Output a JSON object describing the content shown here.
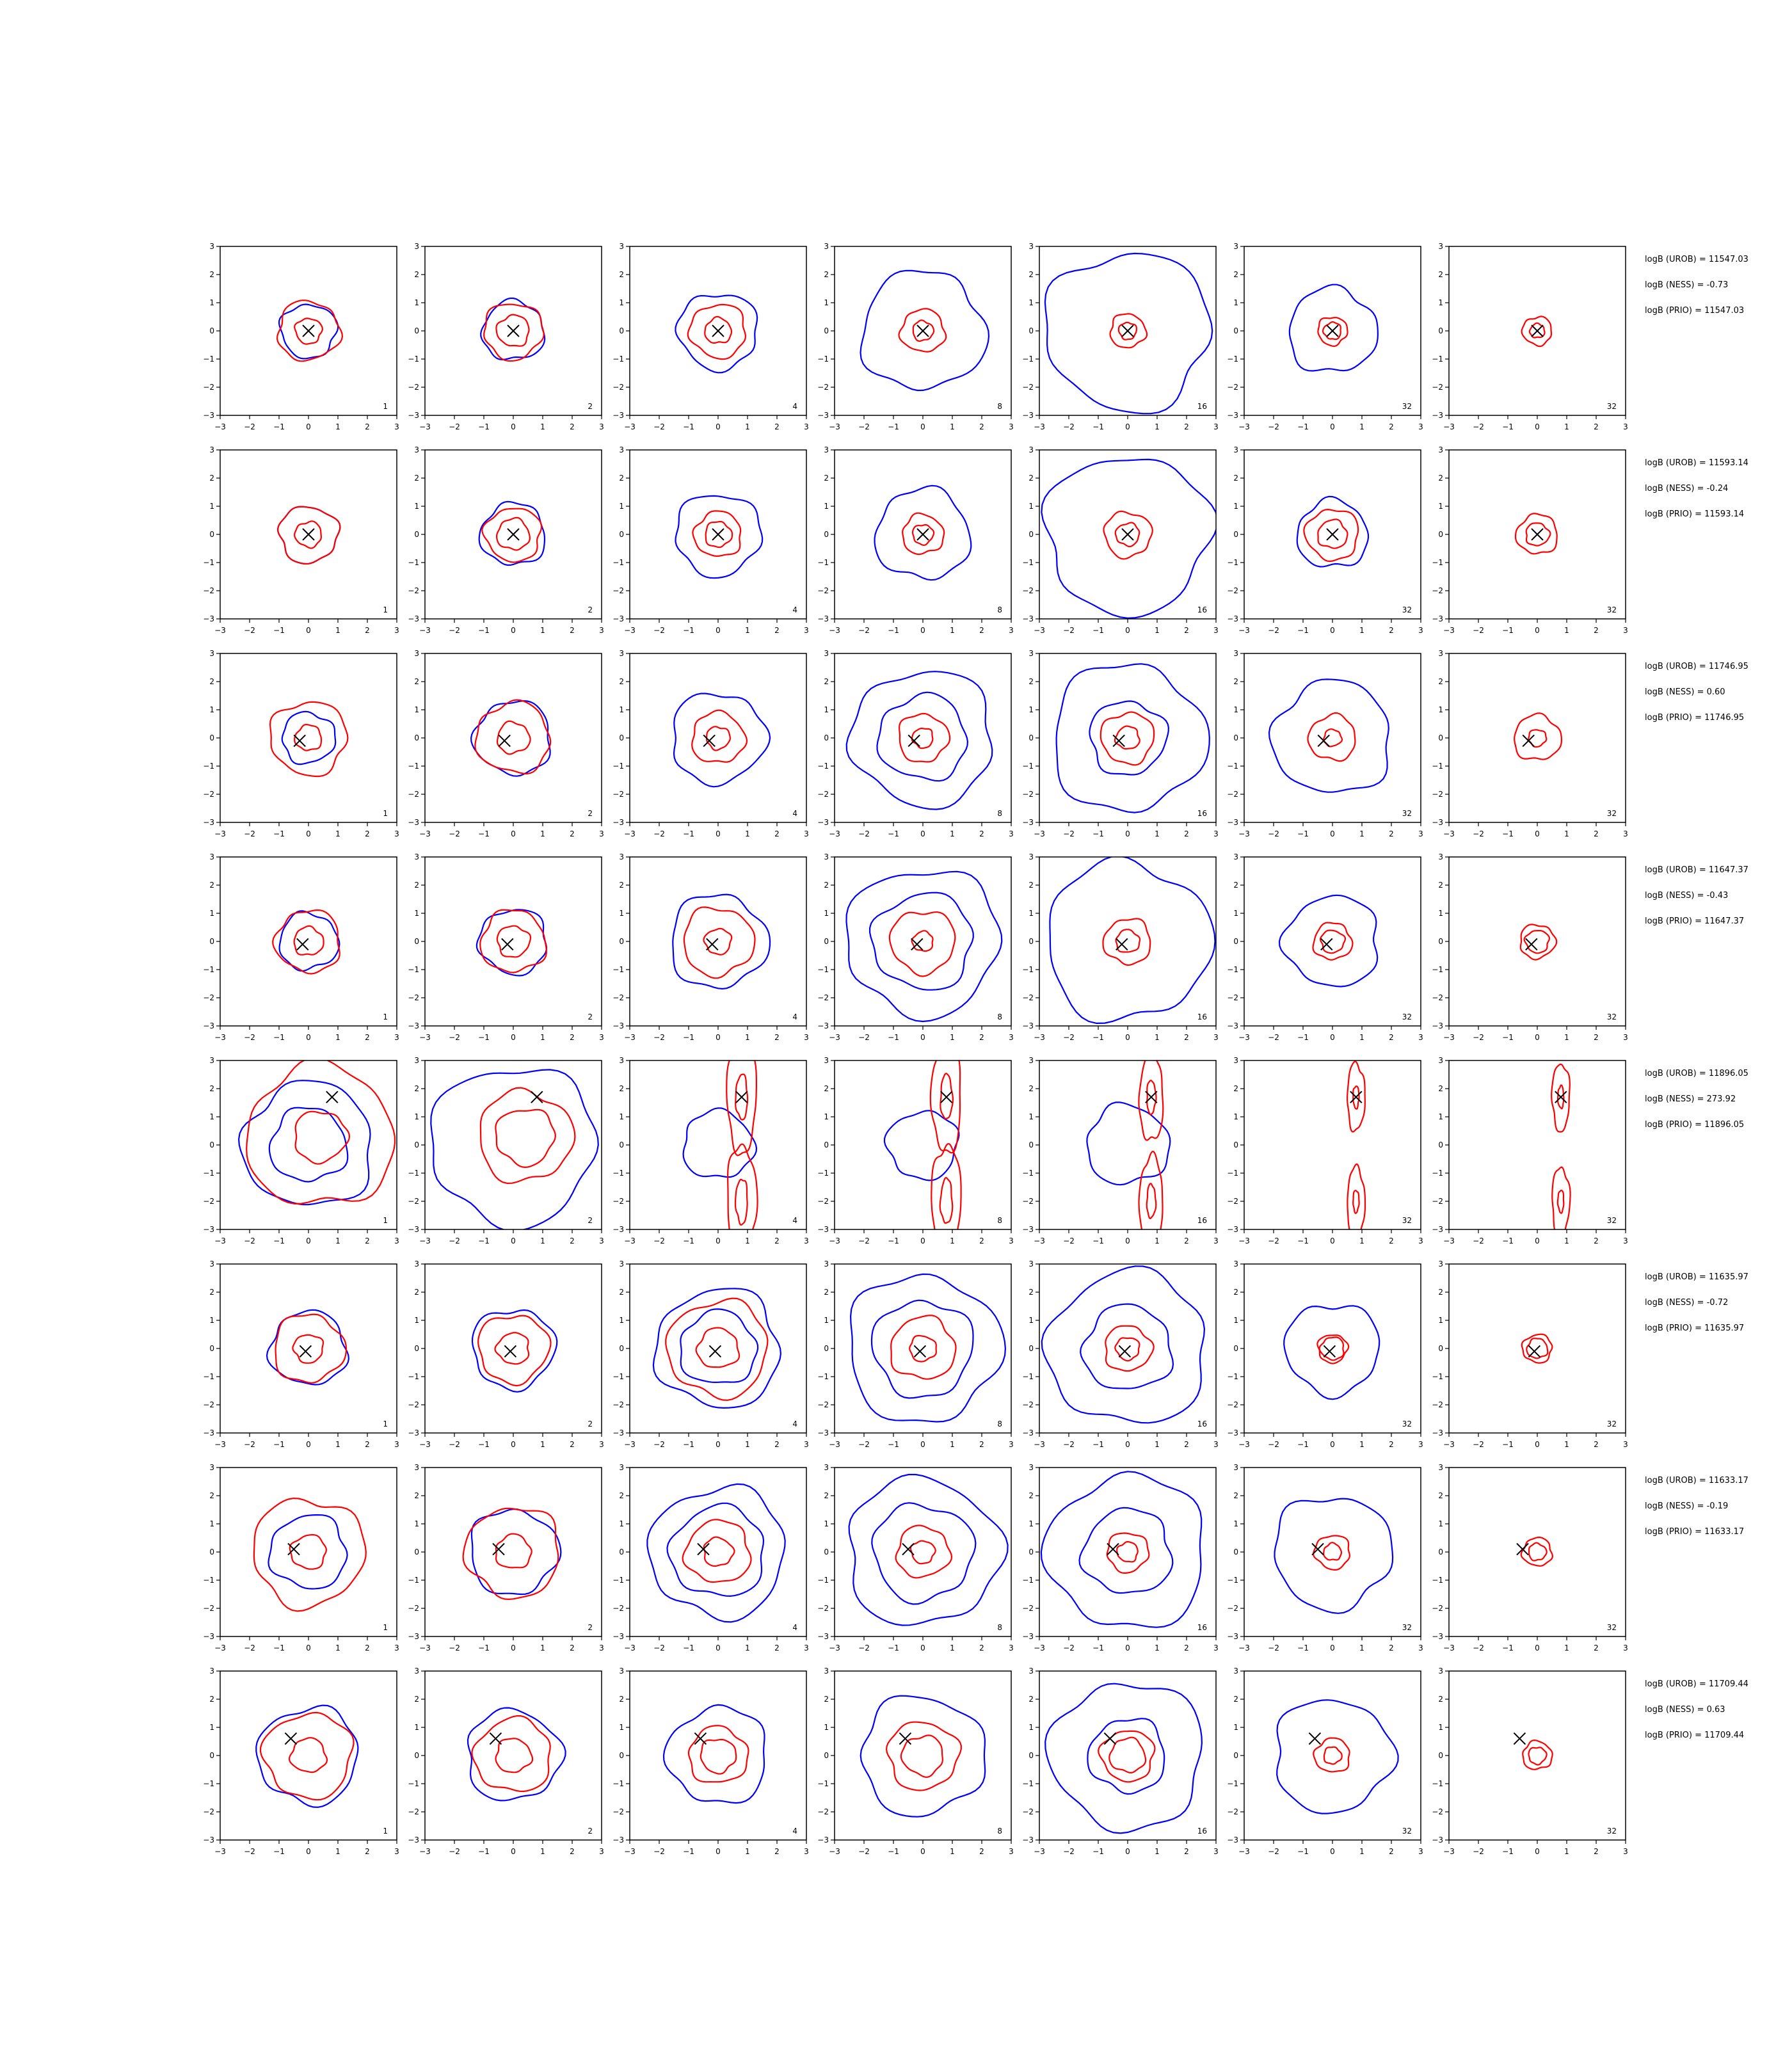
{
  "figure": {
    "type": "contour-grid",
    "rows": 8,
    "panel_x_range": [
      -3,
      3
    ],
    "panel_y_range": [
      -3,
      3
    ],
    "x_ticks": [
      "−3",
      "−2",
      "−1",
      "0",
      "1",
      "2",
      "3"
    ],
    "y_ticks": [
      "3",
      "2",
      "1",
      "0",
      "−1",
      "−2",
      "−3"
    ],
    "column_labels": [
      "1",
      "2",
      "4",
      "8",
      "16",
      "32",
      "32"
    ],
    "colors": {
      "red_contours": "#ff0000",
      "blue_contours": "#0000ff",
      "marker": "#000000"
    }
  },
  "chart_data": {
    "type": "contour",
    "title": "",
    "xlim": [
      -3,
      3
    ],
    "ylim": [
      -3,
      3
    ],
    "rows": [
      {
        "marker": [
          0.0,
          0.0
        ],
        "stats": [
          "logB (UROB) = 11547.03",
          "logB (NESS) = -0.73",
          "logB (PRIO) = 11547.03"
        ],
        "red_rx": [
          [
            0.45,
            1.05
          ],
          [
            0.55,
            1.0
          ],
          [
            0.45,
            0.95
          ],
          [
            0.35,
            0.75
          ],
          [
            0.3,
            0.6
          ],
          [
            0.3,
            0.5
          ],
          [
            0.25,
            0.5
          ]
        ],
        "blue_rx": [
          [
            0.95
          ],
          [
            1.05
          ],
          [
            1.35
          ],
          [
            2.1
          ],
          [
            2.8
          ],
          [
            1.5
          ],
          []
        ]
      },
      {
        "marker": [
          0.0,
          0.0
        ],
        "stats": [
          "logB (UROB) = 11593.14",
          "logB (NESS) = -0.24",
          "logB (PRIO) = 11593.14"
        ],
        "red_rx": [
          [
            0.45,
            1.0
          ],
          [
            0.55,
            0.95
          ],
          [
            0.45,
            0.8
          ],
          [
            0.35,
            0.7
          ],
          [
            0.4,
            0.8
          ],
          [
            0.5,
            0.9
          ],
          [
            0.4,
            0.7
          ]
        ],
        "blue_rx": [
          [
            1.0
          ],
          [
            1.1
          ],
          [
            1.45
          ],
          [
            1.6
          ],
          [
            2.8
          ],
          [
            1.2
          ],
          []
        ]
      },
      {
        "marker": [
          -0.3,
          -0.1
        ],
        "stats": [
          "logB (UROB) = 11746.95",
          "logB (NESS) = 0.60",
          "logB (PRIO) = 11746.95"
        ],
        "red_rx": [
          [
            0.45,
            1.3
          ],
          [
            0.55,
            1.25
          ],
          [
            0.4,
            0.9
          ],
          [
            0.35,
            0.85
          ],
          [
            0.4,
            0.9
          ],
          [
            0.3,
            0.8
          ],
          [
            0.3,
            0.8
          ]
        ],
        "blue_rx": [
          [
            0.9
          ],
          [
            1.3
          ],
          [
            1.6
          ],
          [
            1.5,
            2.4
          ],
          [
            1.3,
            2.6
          ],
          [
            2.0
          ],
          []
        ]
      },
      {
        "marker": [
          -0.2,
          -0.1
        ],
        "stats": [
          "logB (UROB) = 11647.37",
          "logB (NESS) = -0.43",
          "logB (PRIO) = 11647.37"
        ],
        "red_rx": [
          [
            0.5,
            1.1
          ],
          [
            0.55,
            1.1
          ],
          [
            0.45,
            1.2
          ],
          [
            0.35,
            1.1
          ],
          [
            0.4,
            0.8
          ],
          [
            0.4,
            0.65
          ],
          [
            0.4,
            0.6
          ]
        ],
        "blue_rx": [
          [
            1.0
          ],
          [
            1.15
          ],
          [
            1.65
          ],
          [
            1.7,
            2.6
          ],
          [
            2.8
          ],
          [
            1.6
          ],
          []
        ]
      },
      {
        "marker": [
          0.8,
          1.7
        ],
        "stats": [
          "logB (UROB) = 11896.05",
          "logB (NESS) = 273.92",
          "logB (PRIO) = 11896.05"
        ],
        "red_rx": [
          [
            0.9,
            2.5
          ],
          [
            1.0,
            1.6
          ],
          [
            0.2,
            0.5
          ],
          [
            0.2,
            0.5
          ],
          [
            0.15,
            0.4
          ],
          [
            0.1,
            0.3
          ],
          [
            0.1,
            0.3
          ]
        ],
        "blue_rx": [
          [
            1.3,
            2.2
          ],
          [
            2.8
          ],
          [
            1.2
          ],
          [
            1.2
          ],
          [
            1.4
          ],
          [],
          []
        ]
      },
      {
        "marker": [
          -0.1,
          -0.1
        ],
        "stats": [
          "logB (UROB) = 11635.97",
          "logB (NESS) = -0.72",
          "logB (PRIO) = 11635.97"
        ],
        "red_rx": [
          [
            0.5,
            1.2
          ],
          [
            0.55,
            1.2
          ],
          [
            0.7,
            1.7
          ],
          [
            0.45,
            1.1
          ],
          [
            0.4,
            0.8
          ],
          [
            0.4,
            0.5
          ],
          [
            0.35,
            0.5
          ]
        ],
        "blue_rx": [
          [
            1.3
          ],
          [
            1.4
          ],
          [
            1.3,
            2.1
          ],
          [
            1.7,
            2.6
          ],
          [
            1.5,
            2.7
          ],
          [
            1.6
          ],
          []
        ]
      },
      {
        "marker": [
          -0.5,
          0.1
        ],
        "stats": [
          "logB (UROB) = 11633.17",
          "logB (NESS) = -0.19",
          "logB (PRIO) = 11633.17"
        ],
        "red_rx": [
          [
            0.6,
            1.9
          ],
          [
            0.6,
            1.6
          ],
          [
            0.5,
            1.1
          ],
          [
            0.4,
            0.9
          ],
          [
            0.35,
            0.7
          ],
          [
            0.3,
            0.6
          ],
          [
            0.3,
            0.5
          ]
        ],
        "blue_rx": [
          [
            1.3
          ],
          [
            1.5
          ],
          [
            1.6,
            2.3
          ],
          [
            1.7,
            2.6
          ],
          [
            1.5,
            2.7
          ],
          [
            2.0
          ],
          []
        ]
      },
      {
        "marker": [
          -0.6,
          0.6
        ],
        "stats": [
          "logB (UROB) = 11709.44",
          "logB (NESS) = 0.63",
          "logB (PRIO) = 11709.44"
        ],
        "red_rx": [
          [
            0.6,
            1.5
          ],
          [
            0.6,
            1.3
          ],
          [
            0.6,
            1.0
          ],
          [
            0.7,
            1.2
          ],
          [
            0.6,
            0.9
          ],
          [
            0.3,
            0.6
          ],
          [
            0.3,
            0.5
          ]
        ],
        "blue_rx": [
          [
            1.7
          ],
          [
            1.6
          ],
          [
            1.7
          ],
          [
            2.1
          ],
          [
            1.3,
            2.6
          ],
          [
            2.0
          ],
          []
        ]
      }
    ]
  }
}
